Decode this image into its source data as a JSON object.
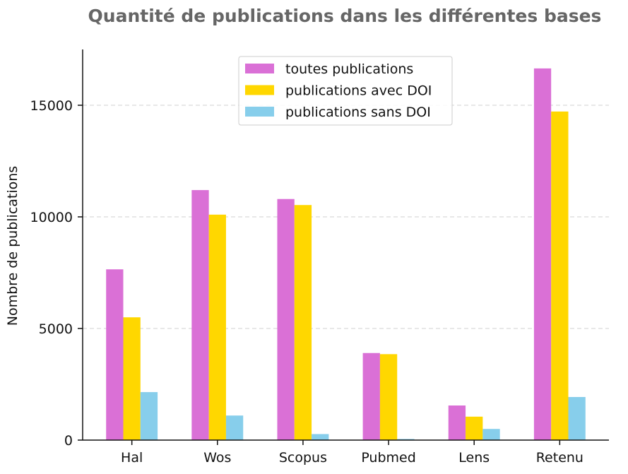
{
  "chart_data": {
    "type": "bar",
    "title": "Quantité de publications dans les différentes bases",
    "xlabel": "",
    "ylabel": "Nombre de publications",
    "categories": [
      "Hal",
      "Wos",
      "Scopus",
      "Pubmed",
      "Lens",
      "Retenu"
    ],
    "series": [
      {
        "name": "toutes publications",
        "color": "#da70d6",
        "values": [
          7650,
          11200,
          10800,
          3900,
          1550,
          16650
        ]
      },
      {
        "name": "publications avec DOI",
        "color": "#ffd700",
        "values": [
          5500,
          10100,
          10530,
          3850,
          1050,
          14720
        ]
      },
      {
        "name": "publications sans DOI",
        "color": "#87ceeb",
        "values": [
          2150,
          1100,
          270,
          50,
          500,
          1930
        ]
      }
    ],
    "ylim": [
      0,
      17500
    ],
    "yticks": [
      "0",
      "5000",
      "10000",
      "15000"
    ],
    "grid": "horizontal dashed",
    "legend_position": "top-center"
  }
}
